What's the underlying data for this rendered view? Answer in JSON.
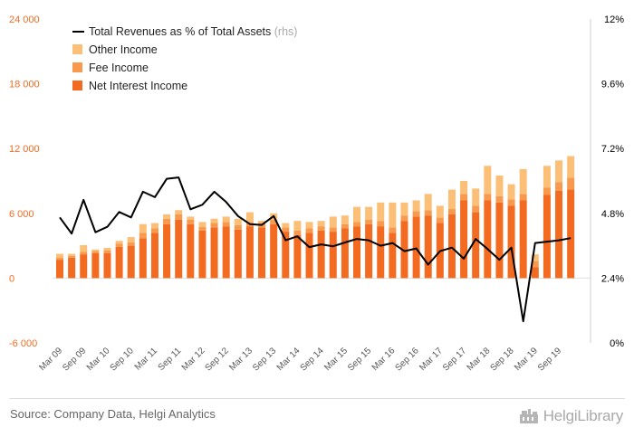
{
  "chart_data": {
    "type": "bar",
    "stacked": true,
    "categories": [
      "Mar 09",
      "Jun 09",
      "Sep 09",
      "Dec 09",
      "Mar 10",
      "Jun 10",
      "Sep 10",
      "Dec 10",
      "Mar 11",
      "Jun 11",
      "Sep 11",
      "Dec 11",
      "Mar 12",
      "Jun 12",
      "Sep 12",
      "Dec 12",
      "Mar 13",
      "Jun 13",
      "Sep 13",
      "Dec 13",
      "Mar 14",
      "Jun 14",
      "Sep 14",
      "Dec 14",
      "Mar 15",
      "Jun 15",
      "Sep 15",
      "Dec 15",
      "Mar 16",
      "Jun 16",
      "Sep 16",
      "Dec 16",
      "Mar 17",
      "Jun 17",
      "Sep 17",
      "Dec 17",
      "Mar 18",
      "Jun 18",
      "Sep 18",
      "Dec 18",
      "Mar 19",
      "Jun 19",
      "Sep 19",
      "Dec 19"
    ],
    "x_tick_labels": [
      "Mar 09",
      "Sep 09",
      "Mar 10",
      "Sep 10",
      "Mar 11",
      "Sep 11",
      "Mar 12",
      "Sep 12",
      "Mar 13",
      "Sep 13",
      "Mar 14",
      "Sep 14",
      "Mar 15",
      "Sep 15",
      "Mar 16",
      "Sep 16",
      "Mar 17",
      "Sep 17",
      "Mar 18",
      "Sep 18",
      "Mar 19",
      "Sep 19"
    ],
    "series": [
      {
        "name": "Net Interest Income",
        "color": "#f26b21",
        "values": [
          1700,
          1900,
          2200,
          2300,
          2300,
          2900,
          3000,
          3700,
          4200,
          5000,
          5400,
          5000,
          4400,
          4700,
          4800,
          4500,
          4800,
          4700,
          5000,
          4300,
          4000,
          4200,
          4400,
          4300,
          4600,
          4800,
          5000,
          4800,
          4200,
          5300,
          5700,
          5800,
          5100,
          5900,
          7200,
          6100,
          7200,
          7000,
          6700,
          7200,
          1000,
          7700,
          8100,
          8200
        ]
      },
      {
        "name": "Fee Income",
        "color": "#f89a4e",
        "values": [
          200,
          150,
          250,
          200,
          250,
          300,
          300,
          500,
          400,
          500,
          500,
          400,
          350,
          400,
          400,
          400,
          400,
          400,
          400,
          400,
          400,
          400,
          400,
          400,
          400,
          400,
          400,
          500,
          500,
          500,
          500,
          500,
          500,
          500,
          600,
          600,
          600,
          600,
          600,
          600,
          600,
          700,
          800,
          1100
        ]
      },
      {
        "name": "Other Income",
        "color": "#fbbf78",
        "values": [
          350,
          200,
          600,
          150,
          250,
          250,
          500,
          800,
          500,
          400,
          400,
          300,
          450,
          400,
          500,
          600,
          900,
          200,
          600,
          400,
          900,
          600,
          500,
          1000,
          800,
          1400,
          1200,
          1700,
          2300,
          1200,
          1000,
          1500,
          1100,
          1800,
          1200,
          1600,
          2600,
          1900,
          1400,
          2300,
          600,
          2000,
          2000,
          2000
        ]
      },
      {
        "name": "Total Revenues as % of Total Assets",
        "axis": "rhs",
        "color": "#000000",
        "values": [
          4.65,
          4.05,
          5.3,
          4.1,
          4.3,
          4.85,
          4.65,
          5.6,
          5.4,
          6.08,
          6.13,
          4.95,
          5.12,
          5.6,
          5.22,
          4.7,
          4.4,
          4.37,
          4.7,
          3.8,
          3.95,
          3.55,
          3.65,
          3.58,
          3.72,
          3.85,
          3.8,
          3.6,
          3.7,
          3.4,
          3.5,
          2.9,
          3.4,
          3.53,
          3.12,
          3.85,
          3.48,
          3.08,
          3.53,
          0.8,
          3.7,
          3.75,
          3.8,
          3.88
        ]
      }
    ],
    "y_left_ticks": [
      "-6 000",
      "0",
      "6 000",
      "12 000",
      "18 000",
      "24 000"
    ],
    "y_right_ticks": [
      "0%",
      "2.4%",
      "4.8%",
      "7.2%",
      "9.6%",
      "12%"
    ],
    "ylim": [
      -6000,
      24000
    ],
    "ylim_rhs": [
      0,
      12
    ],
    "legend_position": "top-left",
    "grid": false
  },
  "legend": {
    "line_label": "Total Revenues as % of Total Assets",
    "line_label_suffix": "(rhs)",
    "other_income": "Other Income",
    "fee_income": "Fee Income",
    "net_interest_income": "Net Interest Income"
  },
  "footer": {
    "source": "Source: Company Data, Helgi Analytics",
    "logo_text": "HelgiLibrary"
  }
}
